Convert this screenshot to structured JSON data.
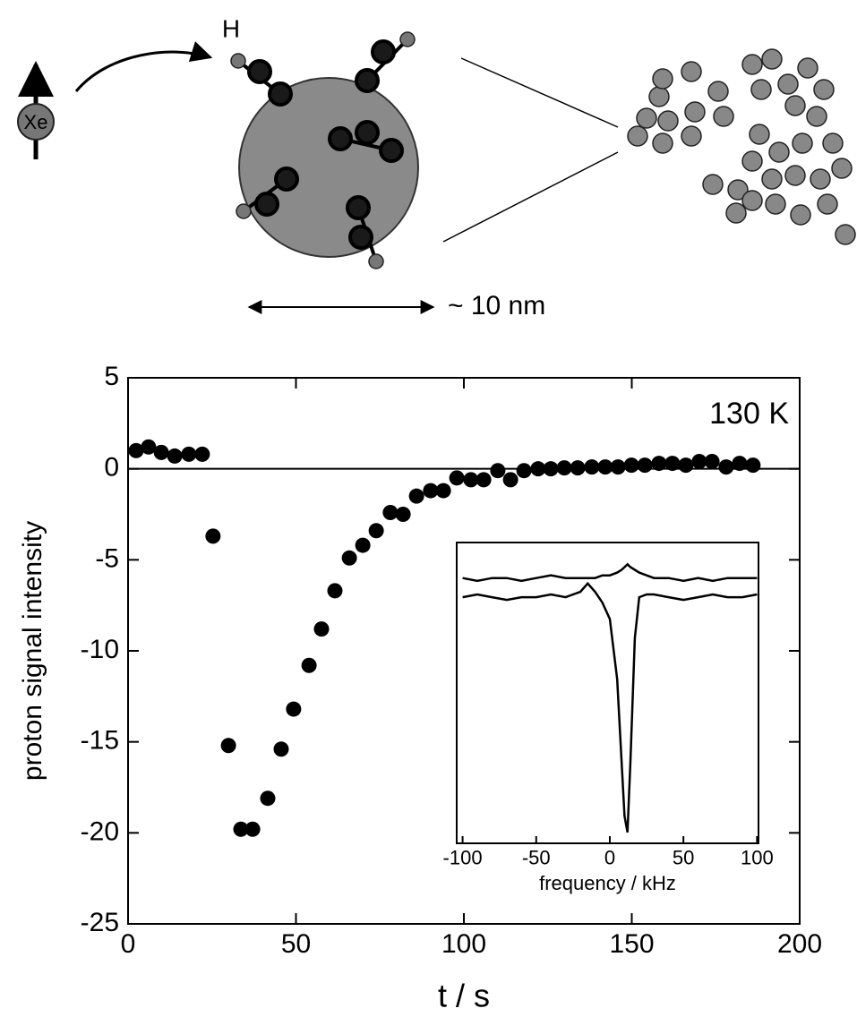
{
  "diagram": {
    "labels": {
      "h": "H",
      "xe": "Xe",
      "scale": "~ 10 nm"
    }
  },
  "chart_data": [
    {
      "type": "scatter",
      "annotation": "130 K",
      "x_label": "t / s",
      "y_label": "proton signal intensity",
      "color": "#000000",
      "hline": 0,
      "xlim": [
        0,
        200
      ],
      "xticks": [
        0,
        50,
        100,
        150,
        200
      ],
      "ylim": [
        -25,
        5
      ],
      "yticks": [
        -25,
        -20,
        -15,
        -10,
        -5,
        0,
        5
      ],
      "x": [
        2.4,
        6.1,
        9.9,
        13.9,
        18.1,
        22.1,
        25.3,
        29.9,
        33.6,
        37.1,
        41.6,
        45.6,
        49.3,
        53.9,
        57.6,
        61.6,
        65.9,
        69.9,
        73.9,
        78.1,
        81.9,
        85.9,
        90.1,
        93.9,
        97.9,
        102.1,
        105.9,
        110.1,
        113.9,
        117.9,
        122.1,
        125.9,
        129.9,
        133.9,
        138.1,
        142.1,
        145.9,
        149.9,
        153.9,
        158.1,
        162.1,
        166.1,
        170.1,
        173.9,
        178.1,
        182.1,
        186.1
      ],
      "values": [
        1.0,
        1.2,
        0.9,
        0.7,
        0.8,
        0.8,
        -3.7,
        -15.2,
        -19.8,
        -19.8,
        -18.1,
        -15.4,
        -13.2,
        -10.8,
        -8.8,
        -6.7,
        -4.9,
        -4.2,
        -3.4,
        -2.4,
        -2.5,
        -1.5,
        -1.2,
        -1.2,
        -0.5,
        -0.6,
        -0.6,
        -0.1,
        -0.6,
        -0.1,
        0,
        0,
        0.05,
        0.05,
        0.1,
        0.1,
        0.1,
        0.2,
        0.2,
        0.3,
        0.3,
        0.2,
        0.4,
        0.4,
        0.1,
        0.3,
        0.2
      ]
    },
    {
      "type": "line",
      "x_label": "frequency / kHz",
      "xlim": [
        -104,
        101
      ],
      "xticks": [
        -100,
        -50,
        0,
        50,
        100
      ],
      "ylim": [
        -0.9,
        0.2
      ],
      "x": [
        -100,
        -90,
        -80,
        -70,
        -60,
        -50,
        -40,
        -30,
        -20,
        -15,
        -10,
        -5,
        0,
        5,
        8,
        10,
        12,
        14,
        17,
        20,
        25,
        30,
        40,
        50,
        60,
        70,
        80,
        90,
        100
      ],
      "series": [
        {
          "color": "#000000",
          "values": [
            0.07,
            0.06,
            0.07,
            0.07,
            0.06,
            0.07,
            0.08,
            0.07,
            0.07,
            0.07,
            0.07,
            0.08,
            0.08,
            0.09,
            0.1,
            0.11,
            0.12,
            0.11,
            0.1,
            0.09,
            0.08,
            0.07,
            0.07,
            0.06,
            0.07,
            0.06,
            0.07,
            0.07,
            0.07
          ]
        },
        {
          "color": "#000000",
          "values": [
            0,
            0.01,
            0,
            -0.01,
            0,
            0,
            0.01,
            0,
            0.02,
            0.05,
            0.02,
            -0.02,
            -0.08,
            -0.3,
            -0.6,
            -0.8,
            -0.86,
            -0.6,
            -0.15,
            0,
            0.01,
            0.01,
            0,
            -0.01,
            0,
            0.01,
            0,
            0,
            0.01
          ]
        }
      ]
    }
  ]
}
